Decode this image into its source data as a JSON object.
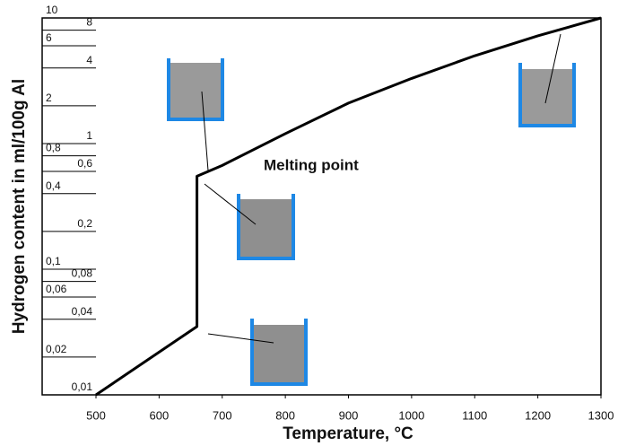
{
  "chart_data": {
    "type": "line",
    "x_label": "Temperature, °C",
    "y_label": "Hydrogen content in ml/100g Al",
    "annotation": "Melting point",
    "x": [
      500,
      660,
      660,
      700,
      800,
      900,
      1000,
      1100,
      1200,
      1300
    ],
    "values": [
      0.01,
      0.035,
      0.55,
      0.67,
      1.2,
      2.1,
      3.3,
      5.0,
      7.2,
      10
    ],
    "color": "#000000",
    "xlim": [
      500,
      1300
    ],
    "xticks": [
      500,
      600,
      700,
      800,
      900,
      1000,
      1100,
      1200,
      1300
    ],
    "ylim": [
      0.01,
      10
    ],
    "log_y": true,
    "yticks": [
      10,
      8,
      6,
      4,
      2,
      1,
      {
        "value": 0.8,
        "label": "0,8"
      },
      {
        "value": 0.6,
        "label": "0,6"
      },
      {
        "value": 0.4,
        "label": "0,4"
      },
      {
        "value": 0.2,
        "label": "0,2"
      },
      {
        "value": 0.1,
        "label": "0,1"
      },
      {
        "value": 0.08,
        "label": "0,08"
      },
      {
        "value": 0.06,
        "label": "0,06"
      },
      {
        "value": 0.04,
        "label": "0,04"
      },
      {
        "value": 0.02,
        "label": "0,02"
      },
      {
        "value": 0.01,
        "label": "0,01"
      }
    ]
  }
}
